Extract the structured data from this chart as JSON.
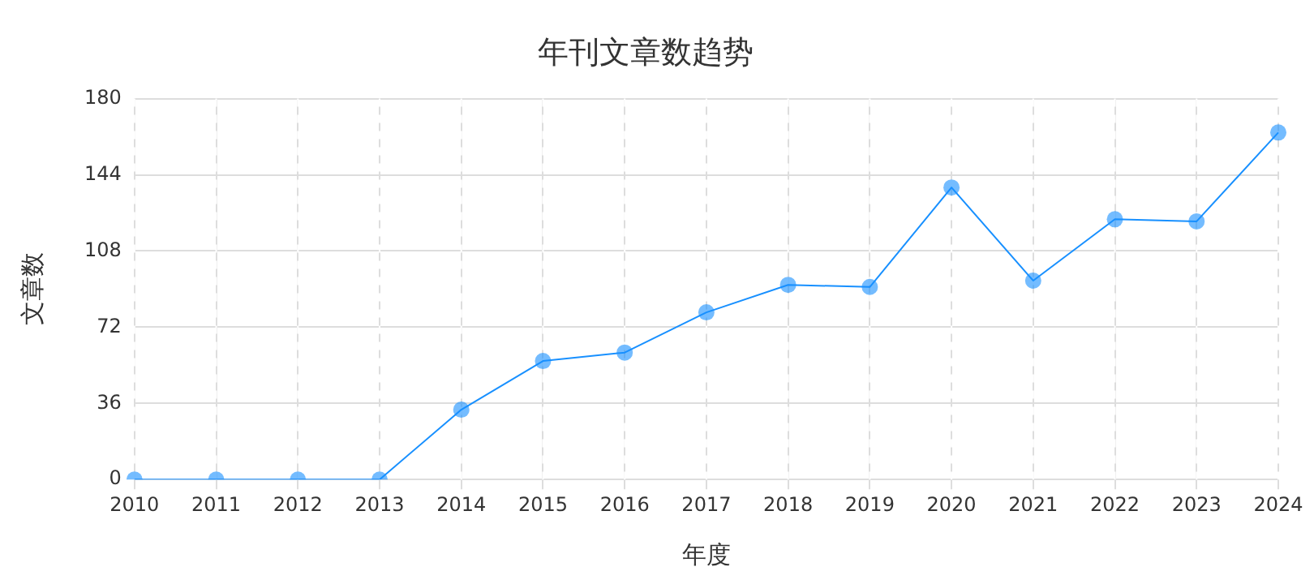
{
  "chart_data": {
    "type": "line",
    "title": "年刊文章数趋势",
    "xlabel": "年度",
    "ylabel": "文章数",
    "categories": [
      "2010",
      "2011",
      "2012",
      "2013",
      "2014",
      "2015",
      "2016",
      "2017",
      "2018",
      "2019",
      "2020",
      "2021",
      "2022",
      "2023",
      "2024"
    ],
    "series": [
      {
        "color": "#1890ff",
        "values": [
          0,
          0,
          0,
          0,
          33,
          56,
          60,
          79,
          92,
          91,
          138,
          94,
          123,
          122,
          164
        ]
      }
    ],
    "ylim": [
      0,
      180
    ],
    "yticks": [
      0,
      36,
      72,
      108,
      144,
      180
    ],
    "grid": true,
    "legend": false,
    "marker": "circle",
    "line_style": "solid"
  }
}
